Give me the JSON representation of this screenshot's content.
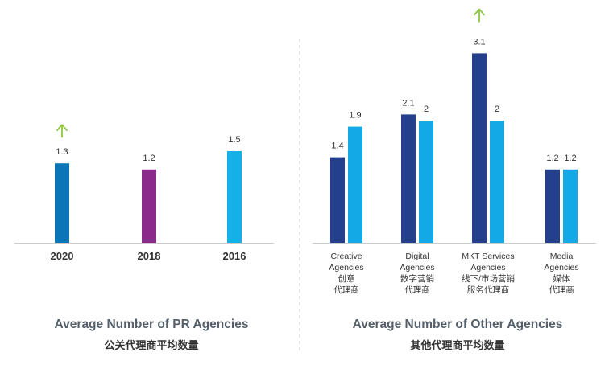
{
  "chart_data": [
    {
      "type": "bar",
      "categories": [
        "2020",
        "2018",
        "2016"
      ],
      "values": [
        1.3,
        1.2,
        1.5
      ],
      "data_labels": [
        "1.3",
        "1.2",
        "1.5"
      ],
      "bar_colors": [
        "#0a76b8",
        "#8a2a8a",
        "#16b0e8"
      ],
      "increase_marker_on": "2020",
      "ylim": [
        0,
        3.3
      ],
      "title": "Average Number of PR Agencies",
      "subtitle": "公关代理商平均数量",
      "grid": false
    },
    {
      "type": "bar",
      "categories": [
        [
          "Creative",
          "Agencies",
          "创意",
          "代理商"
        ],
        [
          "Digital",
          "Agencies",
          "数字营销",
          "代理商"
        ],
        [
          "MKT Services",
          "Agencies",
          "线下/市场营销",
          "服务代理商"
        ],
        [
          "Media",
          "Agencies",
          "媒体",
          "代理商"
        ]
      ],
      "series": [
        {
          "values": [
            1.4,
            2.1,
            3.1,
            1.2
          ],
          "labels": [
            "1.4",
            "2.1",
            "3.1",
            "1.2"
          ],
          "color": "#243f8c"
        },
        {
          "values": [
            1.9,
            2,
            2,
            1.2
          ],
          "labels": [
            "1.9",
            "2",
            "2",
            "1.2"
          ],
          "color": "#12a9e6"
        }
      ],
      "increase_marker_on": "MKT Services Agencies",
      "ylim": [
        0,
        3.3
      ],
      "title": "Average Number of Other Agencies",
      "subtitle": "其他代理商平均数量",
      "grid": false
    }
  ],
  "colors": {
    "arrow": "#8cc63f",
    "axis": "#cccccc",
    "divider": "#c8c8c8"
  }
}
